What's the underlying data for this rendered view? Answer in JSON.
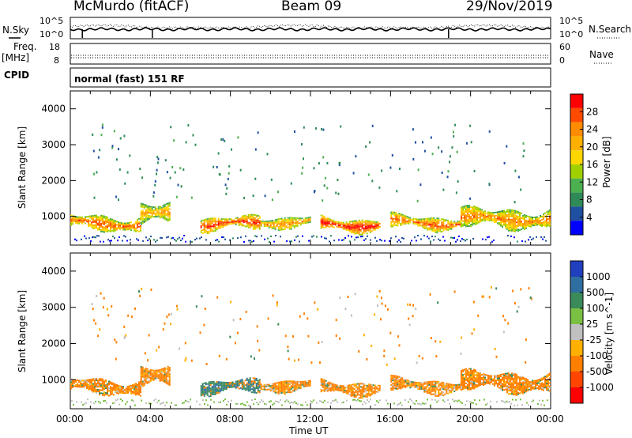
{
  "header": {
    "station": "McMurdo (fitACF)",
    "beam": "Beam 09",
    "date": "29/Nov/2019"
  },
  "noise_panel": {
    "left_label": "N.Sky",
    "right_label": "N.Search",
    "left_ticks": [
      "10^5",
      "10^0"
    ],
    "right_ticks": [
      "10^5",
      "10^0"
    ]
  },
  "freq_panel": {
    "left_label_1": "Freq.",
    "left_label_2": "[MHz]",
    "right_label": "Nave",
    "left_ticks": [
      "18",
      "8"
    ],
    "right_ticks": [
      "60",
      "0"
    ]
  },
  "cpid_panel": {
    "label": "CPID",
    "text": "normal (fast) 151 RF"
  },
  "power_panel": {
    "ylabel": "Slant Range [km]",
    "cbar_label": "Power [dB]",
    "cbar_ticks": [
      "28",
      "24",
      "20",
      "16",
      "12",
      "8",
      "4"
    ],
    "cbar_colors": [
      "#ff0000",
      "#ff4a00",
      "#ff8c00",
      "#ffb000",
      "#ffd700",
      "#a0d000",
      "#4caf50",
      "#2e8b57",
      "#1f4fa0",
      "#0000ff"
    ]
  },
  "velocity_panel": {
    "ylabel": "Slant Range [km]",
    "cbar_label": "Velocity [m s^-1]",
    "cbar_ticks": [
      "1000",
      "500",
      "100",
      "25",
      "-25",
      "-100",
      "-500",
      "-1000"
    ],
    "cbar_colors": [
      "#2040c0",
      "#2f6ea0",
      "#3a8a5a",
      "#7ac143",
      "#c0c0c0",
      "#ffb000",
      "#ff7f00",
      "#ff4500",
      "#ff0000"
    ]
  },
  "chart_data": [
    {
      "type": "heatmap",
      "name_hint": "power",
      "title": "McMurdo (fitACF) Beam 09 29/Nov/2019",
      "xlabel": "Time UT",
      "ylabel": "Slant Range [km]",
      "x_ticks": [
        "00:00",
        "04:00",
        "08:00",
        "12:00",
        "16:00",
        "20:00",
        "00:00"
      ],
      "y_ticks": [
        1000,
        2000,
        3000,
        4000
      ],
      "ylim": [
        200,
        4500
      ],
      "colorbar": {
        "label": "Power [dB]",
        "ticks": [
          4,
          8,
          12,
          16,
          20,
          24,
          28
        ]
      },
      "echo_bands": [
        {
          "start_h": 0.0,
          "end_h": 3.5,
          "range_km": [
            600,
            1050
          ],
          "power_db": 22
        },
        {
          "start_h": 3.5,
          "end_h": 5.0,
          "range_km": [
            700,
            1400
          ],
          "power_db": 18
        },
        {
          "start_h": 6.5,
          "end_h": 9.5,
          "range_km": [
            600,
            1000
          ],
          "power_db": 24
        },
        {
          "start_h": 9.5,
          "end_h": 12.0,
          "range_km": [
            700,
            1050
          ],
          "power_db": 20
        },
        {
          "start_h": 12.5,
          "end_h": 15.5,
          "range_km": [
            600,
            1000
          ],
          "power_db": 26
        },
        {
          "start_h": 16.0,
          "end_h": 19.5,
          "range_km": [
            650,
            1050
          ],
          "power_db": 22
        },
        {
          "start_h": 19.5,
          "end_h": 24.0,
          "range_km": [
            650,
            1250
          ],
          "power_db": 20
        }
      ]
    },
    {
      "type": "heatmap",
      "name_hint": "velocity",
      "xlabel": "Time UT",
      "ylabel": "Slant Range [km]",
      "x_ticks": [
        "00:00",
        "04:00",
        "08:00",
        "12:00",
        "16:00",
        "20:00",
        "00:00"
      ],
      "y_ticks": [
        1000,
        2000,
        3000,
        4000
      ],
      "ylim": [
        200,
        4500
      ],
      "colorbar": {
        "label": "Velocity [m s^-1]",
        "ticks": [
          -1000,
          -500,
          -100,
          -25,
          25,
          100,
          500,
          1000
        ]
      },
      "echo_bands": [
        {
          "start_h": 0.0,
          "end_h": 3.5,
          "range_km": [
            600,
            1050
          ],
          "velocity": -100
        },
        {
          "start_h": 3.5,
          "end_h": 5.0,
          "range_km": [
            700,
            1400
          ],
          "velocity": -100
        },
        {
          "start_h": 6.5,
          "end_h": 9.5,
          "range_km": [
            600,
            1000
          ],
          "velocity": 100
        },
        {
          "start_h": 9.5,
          "end_h": 12.0,
          "range_km": [
            700,
            1050
          ],
          "velocity": -100
        },
        {
          "start_h": 12.5,
          "end_h": 15.5,
          "range_km": [
            600,
            1000
          ],
          "velocity": -100
        },
        {
          "start_h": 16.0,
          "end_h": 19.5,
          "range_km": [
            650,
            1050
          ],
          "velocity": -100
        },
        {
          "start_h": 19.5,
          "end_h": 24.0,
          "range_km": [
            650,
            1250
          ],
          "velocity": -100
        }
      ]
    }
  ],
  "x_axis": {
    "label": "Time UT",
    "ticks": [
      "00:00",
      "04:00",
      "08:00",
      "12:00",
      "16:00",
      "20:00",
      "00:00"
    ]
  }
}
